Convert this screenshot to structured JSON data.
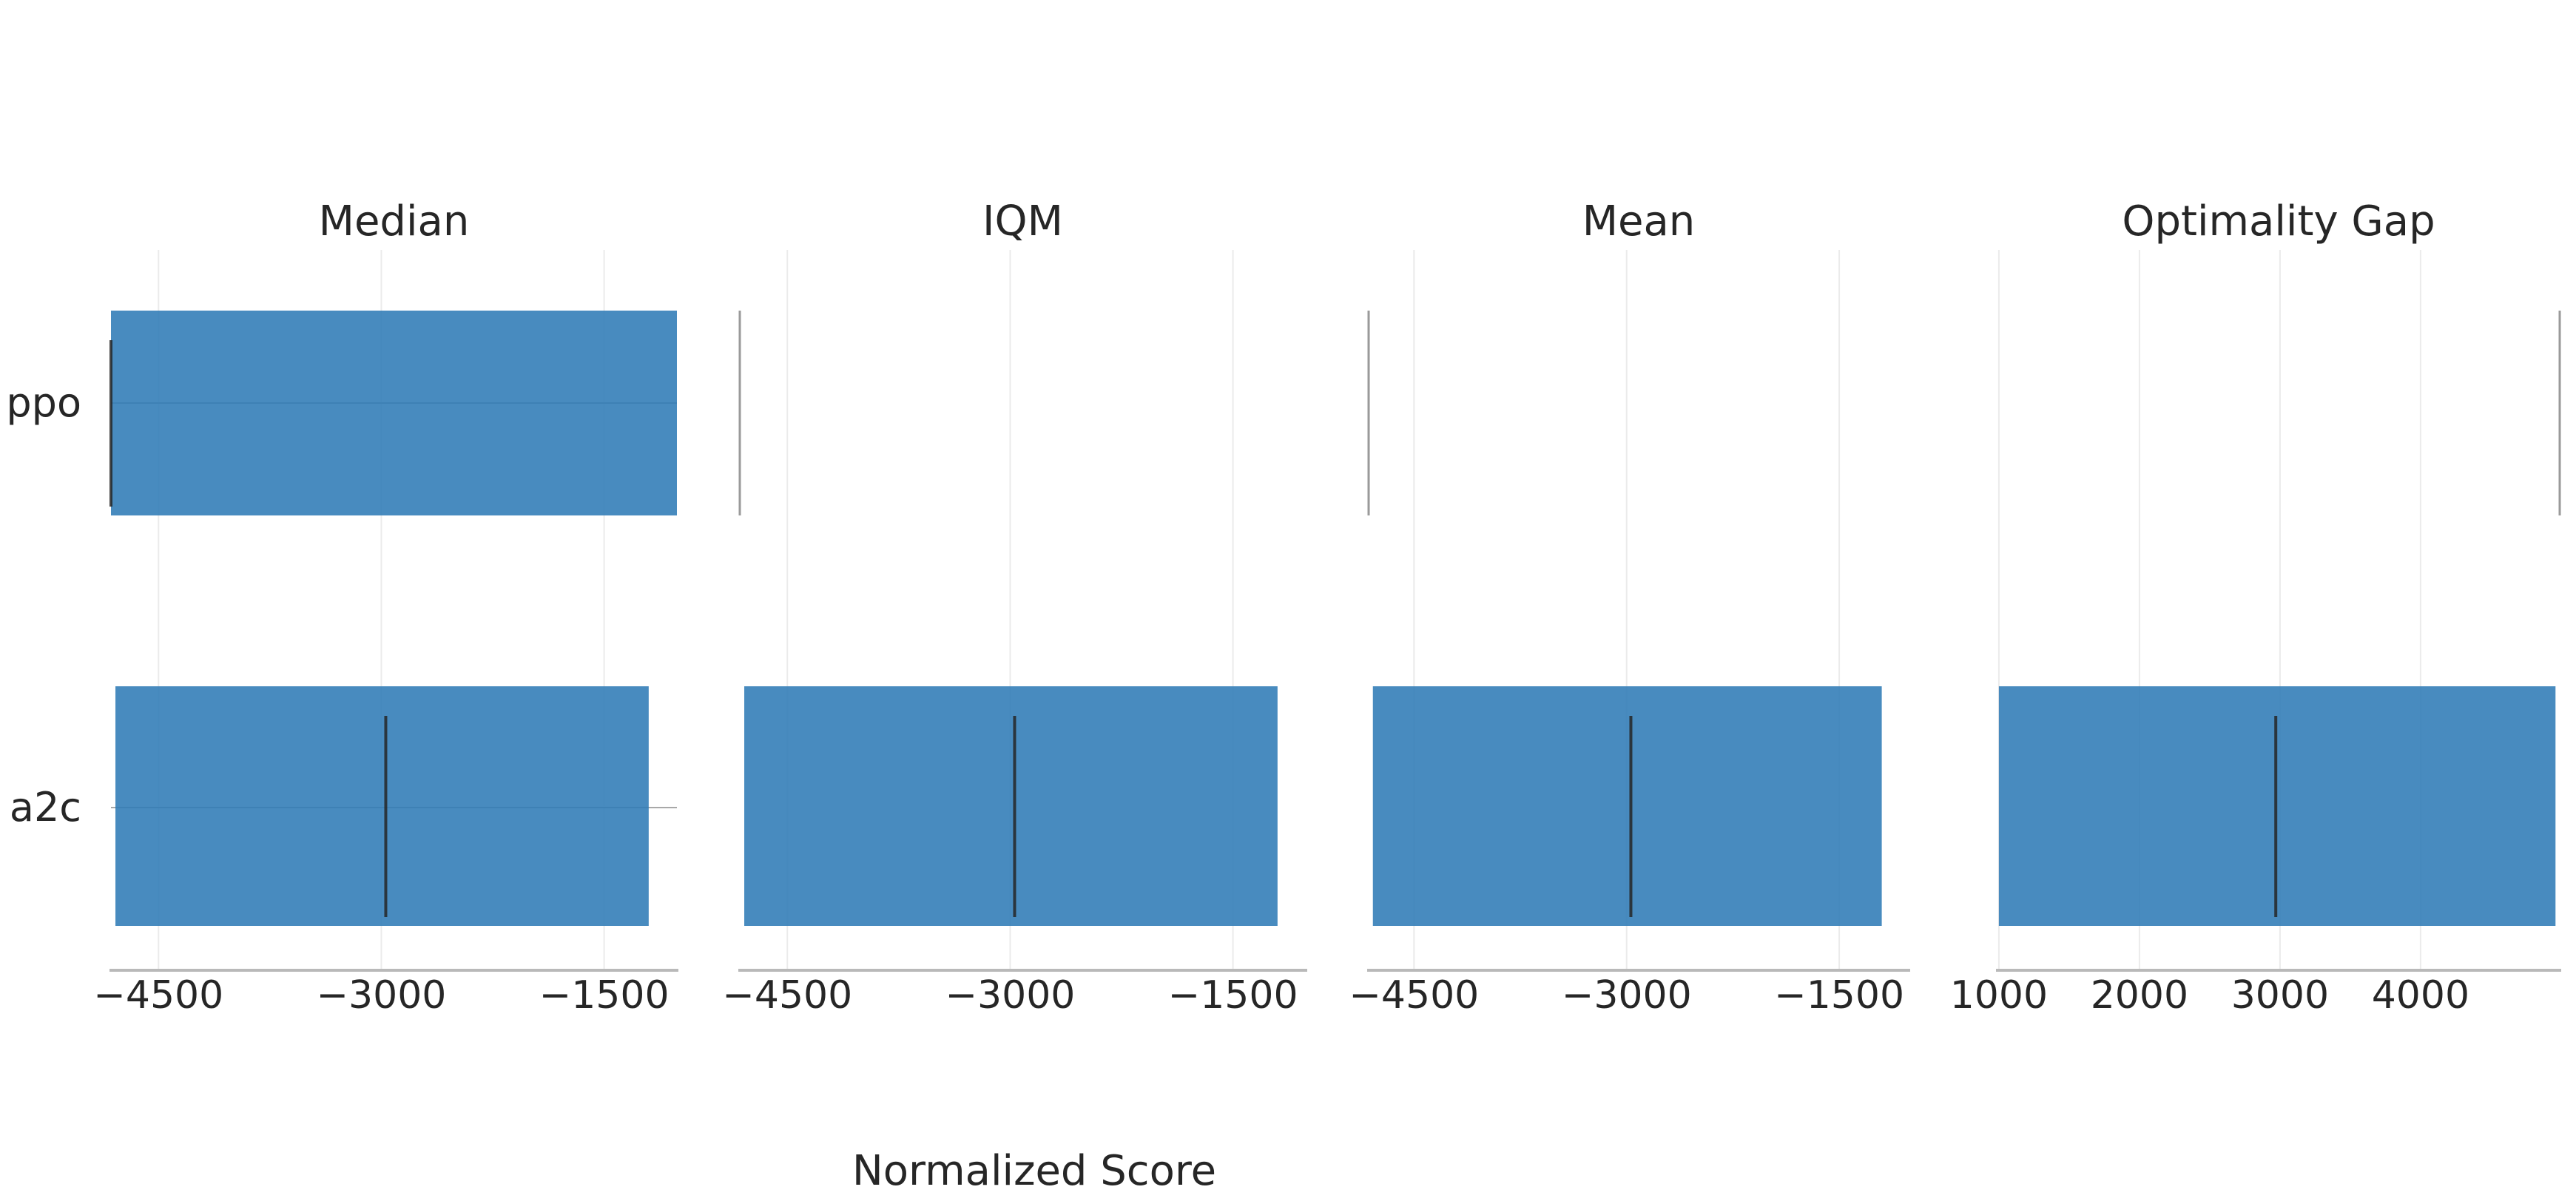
{
  "chart_data": {
    "type": "bar",
    "xlabel": "Normalized Score",
    "algorithms": [
      "ppo",
      "a2c"
    ],
    "panels": [
      {
        "title": "Median",
        "xlim": [
          -4820,
          -1010
        ],
        "ticks": [
          -4500,
          -3000,
          -1500
        ],
        "tick_labels": [
          "−4500",
          "−3000",
          "−1500"
        ],
        "series": [
          {
            "name": "ppo",
            "point": -4820,
            "ci": [
              -4820,
              -1010
            ]
          },
          {
            "name": "a2c",
            "point": -2970,
            "ci": [
              -4790,
              -1200
            ]
          }
        ]
      },
      {
        "title": "IQM",
        "xlim": [
          -4820,
          -1010
        ],
        "ticks": [
          -4500,
          -3000,
          -1500
        ],
        "tick_labels": [
          "−4500",
          "−3000",
          "−1500"
        ],
        "series": [
          {
            "name": "ppo",
            "point": -4820,
            "ci": [
              -4820,
              -4820
            ]
          },
          {
            "name": "a2c",
            "point": -2970,
            "ci": [
              -4790,
              -1200
            ]
          }
        ]
      },
      {
        "title": "Mean",
        "xlim": [
          -4820,
          -1010
        ],
        "ticks": [
          -4500,
          -3000,
          -1500
        ],
        "tick_labels": [
          "−4500",
          "−3000",
          "−1500"
        ],
        "series": [
          {
            "name": "ppo",
            "point": -4820,
            "ci": [
              -4820,
              -4820
            ]
          },
          {
            "name": "a2c",
            "point": -2970,
            "ci": [
              -4790,
              -1200
            ]
          }
        ]
      },
      {
        "title": "Optimality Gap",
        "xlim": [
          990,
          4990
        ],
        "ticks": [
          1000,
          2000,
          3000,
          4000
        ],
        "tick_labels": [
          "1000",
          "2000",
          "3000",
          "4000"
        ],
        "series": [
          {
            "name": "ppo",
            "point": 4990,
            "ci": [
              4990,
              4990
            ]
          },
          {
            "name": "a2c",
            "point": 2970,
            "ci": [
              1000,
              4960
            ]
          }
        ]
      }
    ]
  }
}
